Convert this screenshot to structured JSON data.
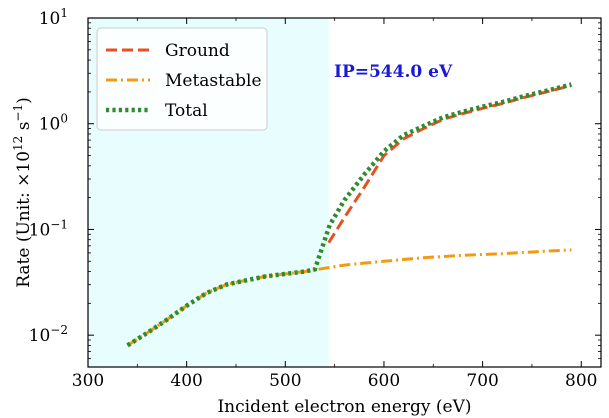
{
  "chart_data": {
    "type": "line",
    "xlabel": "Incident electron energy (eV)",
    "ylabel": {
      "prefix": "Rate (Unit: ×10",
      "exp1": "12",
      "mid": " s",
      "exp2": "−1",
      "suffix": ")"
    },
    "xlim": [
      300,
      820
    ],
    "ylim": [
      0.005,
      10
    ],
    "yscale": "log",
    "xticks": [
      300,
      400,
      500,
      600,
      700,
      800
    ],
    "yticks": [
      {
        "value": 0.01,
        "base": "10",
        "exp": "−2"
      },
      {
        "value": 0.1,
        "base": "10",
        "exp": "−1"
      },
      {
        "value": 1,
        "base": "10",
        "exp": "0"
      },
      {
        "value": 10,
        "base": "10",
        "exp": "1"
      }
    ],
    "shaded_region": {
      "x": [
        300,
        544
      ],
      "color": "#e8fdfd"
    },
    "annotation": {
      "text": "IP=544.0 eV",
      "color": "#1a1ad6"
    },
    "legend": "upper-left",
    "series": [
      {
        "name": "Ground",
        "color": "#e8501f",
        "style": "dashed",
        "x": [
          544,
          560,
          580,
          600,
          620,
          640,
          660,
          680,
          700,
          720,
          740,
          760,
          790
        ],
        "y": [
          0.075,
          0.13,
          0.25,
          0.5,
          0.72,
          0.9,
          1.1,
          1.25,
          1.4,
          1.55,
          1.75,
          1.95,
          2.3
        ]
      },
      {
        "name": "Metastable",
        "color": "#f59a10",
        "style": "dashdot",
        "x": [
          340,
          360,
          380,
          400,
          420,
          440,
          460,
          480,
          500,
          520,
          540,
          560,
          580,
          600,
          640,
          680,
          720,
          760,
          790
        ],
        "y": [
          0.008,
          0.0105,
          0.014,
          0.019,
          0.025,
          0.03,
          0.033,
          0.036,
          0.038,
          0.04,
          0.043,
          0.046,
          0.048,
          0.05,
          0.054,
          0.057,
          0.059,
          0.062,
          0.064
        ]
      },
      {
        "name": "Total",
        "color": "#2e8b2e",
        "style": "dotted",
        "x": [
          340,
          360,
          380,
          400,
          420,
          440,
          460,
          480,
          500,
          520,
          530,
          545,
          560,
          580,
          600,
          620,
          640,
          660,
          680,
          700,
          720,
          740,
          760,
          790
        ],
        "y": [
          0.008,
          0.0105,
          0.014,
          0.019,
          0.025,
          0.03,
          0.033,
          0.036,
          0.038,
          0.04,
          0.042,
          0.11,
          0.19,
          0.33,
          0.55,
          0.78,
          0.95,
          1.15,
          1.3,
          1.45,
          1.6,
          1.8,
          2.0,
          2.35
        ]
      }
    ]
  }
}
